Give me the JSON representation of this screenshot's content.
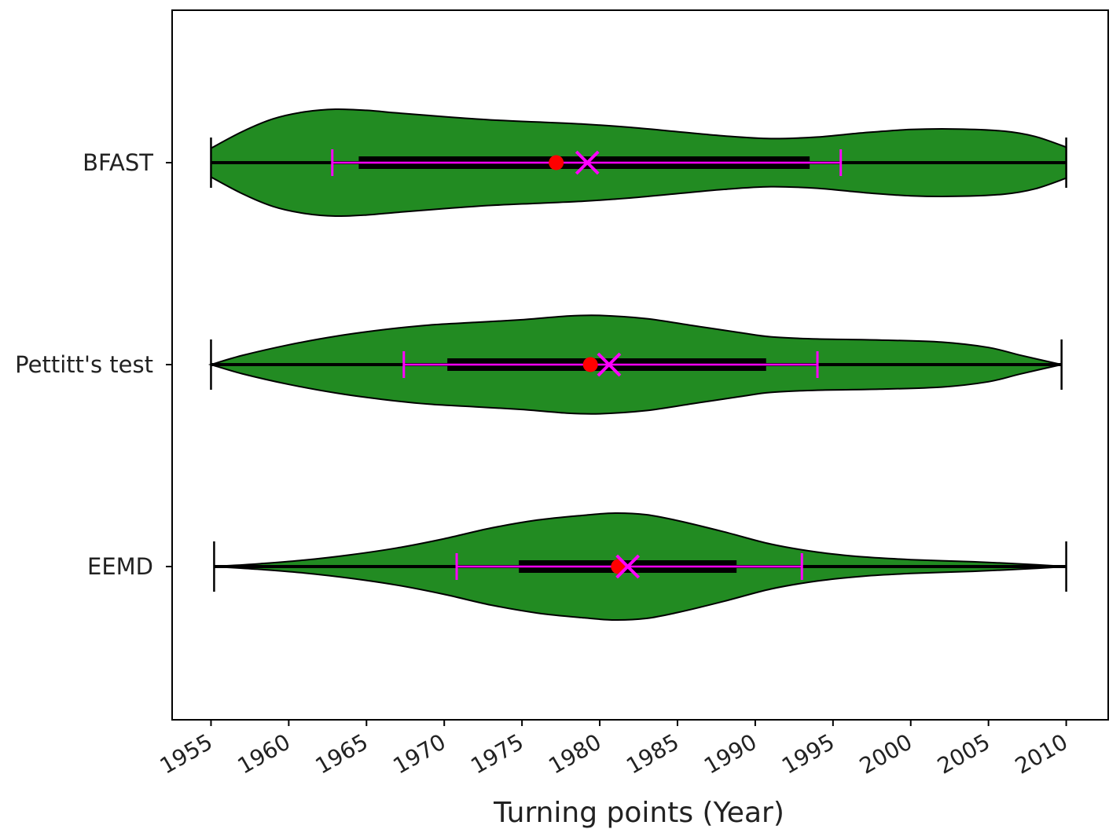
{
  "chart_data": {
    "type": "violin",
    "orientation": "horizontal",
    "xlabel": "Turning points (Year)",
    "ylabel": "",
    "title": "",
    "xlim": [
      1952.5,
      2012.7
    ],
    "xticks": [
      1955,
      1960,
      1965,
      1970,
      1975,
      1980,
      1985,
      1990,
      1995,
      2000,
      2005,
      2010
    ],
    "xtick_labels": [
      "1955",
      "1960",
      "1965",
      "1970",
      "1975",
      "1980",
      "1985",
      "1990",
      "1995",
      "2000",
      "2005",
      "2010"
    ],
    "xtick_rotation_deg": 30,
    "grid": false,
    "colors": {
      "violin_fill": "#228B22",
      "violin_edge": "#000000",
      "box": "#000000",
      "whisker": "#FF00FF",
      "median_marker": "#FF0000",
      "mean_marker": "#FF00FF"
    },
    "series": [
      {
        "category": "BFAST",
        "min": 1955.0,
        "max": 2010.0,
        "q1": 1964.5,
        "q3": 1993.5,
        "whisker_low": 1962.8,
        "whisker_high": 1995.5,
        "median": 1977.2,
        "mean": 1979.2,
        "density": [
          [
            1955.0,
            0.27
          ],
          [
            1957.0,
            0.58
          ],
          [
            1959.0,
            0.82
          ],
          [
            1961.0,
            0.95
          ],
          [
            1963.0,
            1.0
          ],
          [
            1965.0,
            0.98
          ],
          [
            1967.0,
            0.93
          ],
          [
            1970.0,
            0.86
          ],
          [
            1973.0,
            0.8
          ],
          [
            1976.0,
            0.76
          ],
          [
            1979.0,
            0.72
          ],
          [
            1982.0,
            0.66
          ],
          [
            1985.0,
            0.58
          ],
          [
            1988.0,
            0.5
          ],
          [
            1991.0,
            0.45
          ],
          [
            1994.0,
            0.48
          ],
          [
            1997.0,
            0.56
          ],
          [
            2000.0,
            0.62
          ],
          [
            2003.0,
            0.63
          ],
          [
            2006.0,
            0.59
          ],
          [
            2008.0,
            0.49
          ],
          [
            2010.0,
            0.29
          ]
        ]
      },
      {
        "category": "Pettitt's test",
        "min": 1955.0,
        "max": 2009.7,
        "q1": 1970.2,
        "q3": 1990.7,
        "whisker_low": 1967.4,
        "whisker_high": 1994.0,
        "median": 1979.4,
        "mean": 1980.6,
        "density": [
          [
            1955.0,
            0.0
          ],
          [
            1957.0,
            0.17
          ],
          [
            1960.0,
            0.37
          ],
          [
            1963.0,
            0.53
          ],
          [
            1966.0,
            0.65
          ],
          [
            1969.0,
            0.74
          ],
          [
            1972.0,
            0.79
          ],
          [
            1975.0,
            0.84
          ],
          [
            1978.0,
            0.91
          ],
          [
            1980.0,
            0.92
          ],
          [
            1983.0,
            0.86
          ],
          [
            1986.0,
            0.73
          ],
          [
            1989.0,
            0.6
          ],
          [
            1991.0,
            0.52
          ],
          [
            1994.0,
            0.48
          ],
          [
            1998.0,
            0.46
          ],
          [
            2002.0,
            0.42
          ],
          [
            2005.0,
            0.32
          ],
          [
            2007.0,
            0.18
          ],
          [
            2009.7,
            0.0
          ]
        ]
      },
      {
        "category": "EEMD",
        "min": 1955.2,
        "max": 2010.0,
        "q1": 1974.8,
        "q3": 1988.8,
        "whisker_low": 1970.8,
        "whisker_high": 1993.0,
        "median": 1981.2,
        "mean": 1981.8,
        "density": [
          [
            1955.2,
            0.0
          ],
          [
            1958.0,
            0.05
          ],
          [
            1961.0,
            0.12
          ],
          [
            1964.0,
            0.22
          ],
          [
            1967.0,
            0.35
          ],
          [
            1970.0,
            0.52
          ],
          [
            1973.0,
            0.72
          ],
          [
            1976.0,
            0.87
          ],
          [
            1979.0,
            0.96
          ],
          [
            1981.0,
            1.0
          ],
          [
            1983.0,
            0.97
          ],
          [
            1985.0,
            0.86
          ],
          [
            1988.0,
            0.65
          ],
          [
            1991.0,
            0.42
          ],
          [
            1994.0,
            0.27
          ],
          [
            1997.0,
            0.18
          ],
          [
            2000.0,
            0.13
          ],
          [
            2004.0,
            0.09
          ],
          [
            2007.0,
            0.05
          ],
          [
            2010.0,
            0.0
          ]
        ]
      }
    ]
  }
}
